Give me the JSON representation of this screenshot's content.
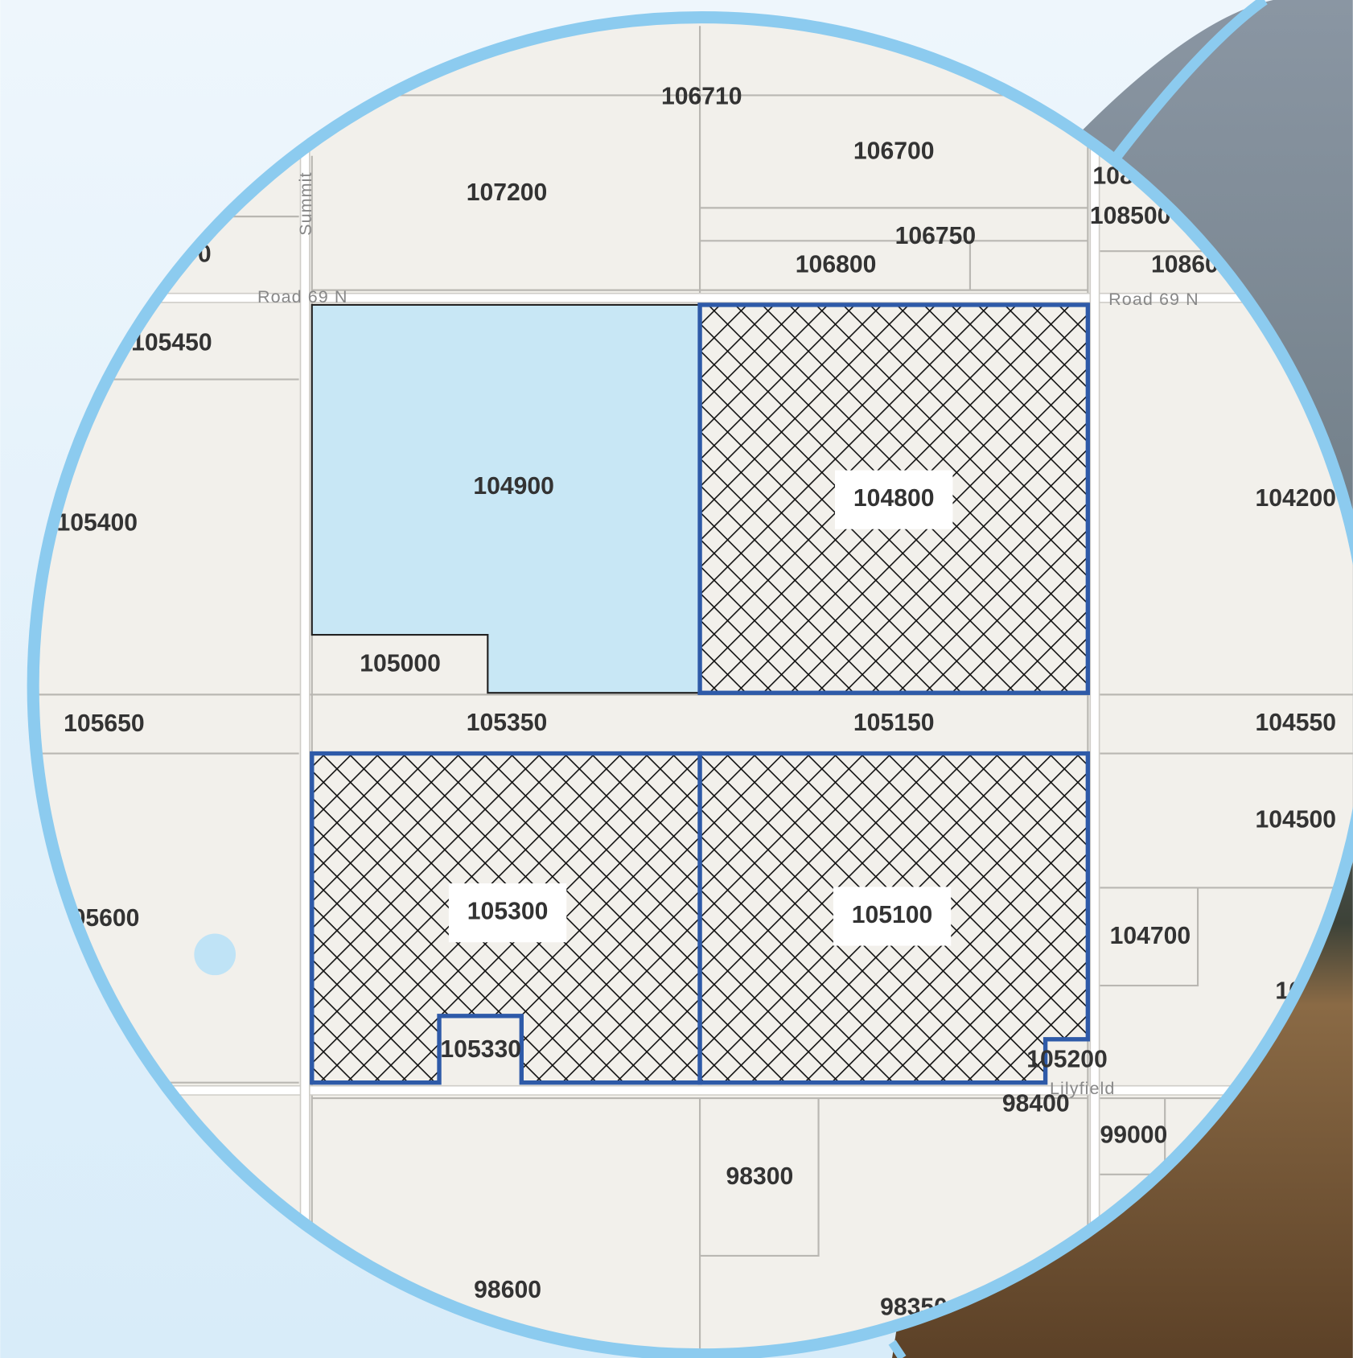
{
  "parcels": [
    "106710",
    "106700",
    "107200",
    "108",
    "108500",
    "106750",
    "106800",
    "10860",
    "0",
    "105450",
    "104900",
    "104800",
    "104200",
    "105400",
    "105000",
    "105650",
    "105350",
    "105150",
    "104550",
    "104500",
    "105300",
    "105100",
    "05600",
    "104700",
    "10",
    "105330",
    "105200",
    "98400",
    "99000",
    "98300",
    "98600",
    "98350"
  ],
  "roads": [
    "Road 69 N",
    "Road 69 N",
    "Summit",
    "Lilyfield"
  ]
}
